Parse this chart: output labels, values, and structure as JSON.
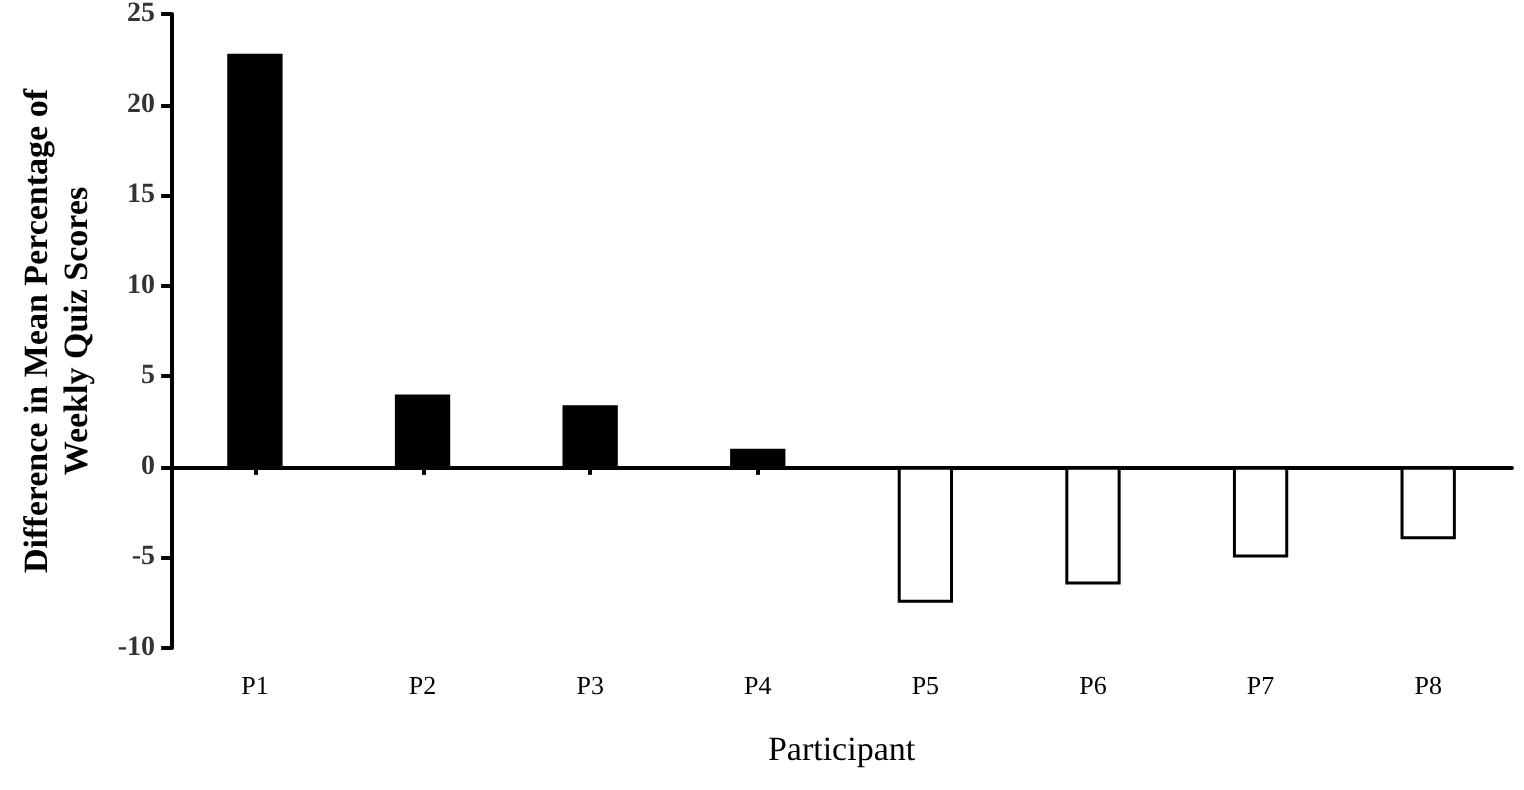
{
  "chart_data": {
    "type": "bar",
    "xlabel": "Participant",
    "ylabel": "Difference in Mean Percentage of\nWeekly Quiz Scores",
    "categories": [
      "P1",
      "P2",
      "P3",
      "P4",
      "P5",
      "P6",
      "P7",
      "P8"
    ],
    "values": [
      22.8,
      4.0,
      3.4,
      1.0,
      -7.5,
      -6.5,
      -5.0,
      -4.0
    ],
    "colors": [
      "#000000",
      "#000000",
      "#000000",
      "#000000",
      "#ffffff",
      "#ffffff",
      "#ffffff",
      "#ffffff"
    ],
    "ylim": [
      -10,
      25
    ],
    "yticks": [
      -10,
      -5,
      0,
      5,
      10,
      15,
      20,
      25
    ]
  }
}
